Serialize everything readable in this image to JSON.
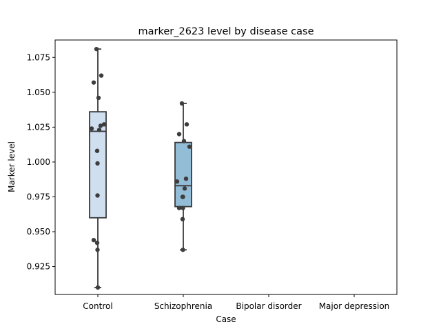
{
  "chart_data": {
    "type": "box",
    "title": "marker_2623 level by disease case",
    "xlabel": "Case",
    "ylabel": "Marker level",
    "categories": [
      "Control",
      "Schizophrenia",
      "Bipolar disorder",
      "Major depression"
    ],
    "ylim": [
      0.905,
      1.0875
    ],
    "yticks": [
      0.925,
      0.95,
      0.975,
      1.0,
      1.025,
      1.05,
      1.075
    ],
    "ytick_labels": [
      "0.925",
      "0.950",
      "0.975",
      "1.000",
      "1.025",
      "1.050",
      "1.075"
    ],
    "grid": false,
    "boxes": [
      {
        "category": "Control",
        "whisker_low": 0.91,
        "q1": 0.96,
        "median": 1.022,
        "q3": 1.036,
        "whisker_high": 1.081,
        "fill": "#cfdff0",
        "points": [
          1.081,
          1.062,
          1.057,
          1.046,
          1.027,
          1.026,
          1.024,
          1.023,
          1.008,
          0.999,
          0.976,
          0.944,
          0.942,
          0.937,
          0.91
        ]
      },
      {
        "category": "Schizophrenia",
        "whisker_low": 0.937,
        "q1": 0.968,
        "median": 0.983,
        "q3": 1.014,
        "whisker_high": 1.042,
        "fill": "#93bdd6",
        "points": [
          1.042,
          1.027,
          1.02,
          1.015,
          1.011,
          0.988,
          0.986,
          0.981,
          0.975,
          0.975,
          0.967,
          0.967,
          0.959,
          0.937
        ]
      },
      {
        "category": "Bipolar disorder",
        "points": []
      },
      {
        "category": "Major depression",
        "points": []
      }
    ]
  }
}
